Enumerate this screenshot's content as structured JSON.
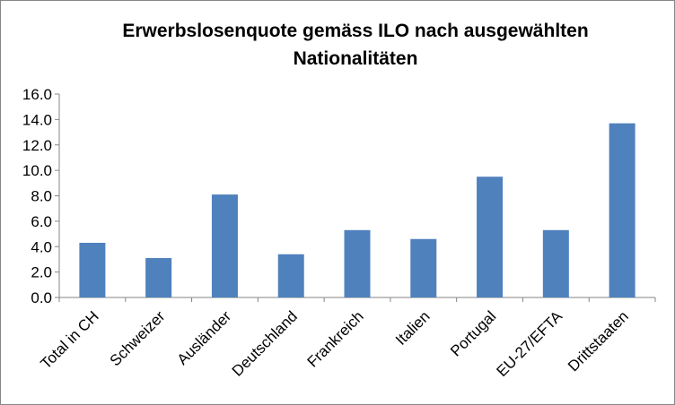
{
  "chart_data": {
    "type": "bar",
    "title_line1": "Erwerbslosenquote gemäss ILO nach ausgewählten",
    "title_line2": "Nationalitäten",
    "categories": [
      "Total in CH",
      "Schweizer",
      "Ausländer",
      "Deutschland",
      "Frankreich",
      "Italien",
      "Portugal",
      "EU-27/EFTA",
      "Drittstaaten"
    ],
    "values": [
      4.3,
      3.1,
      8.1,
      3.4,
      5.3,
      4.6,
      9.5,
      5.3,
      13.7
    ],
    "ylim": [
      0,
      16
    ],
    "yticks": [
      "0.0",
      "2.0",
      "4.0",
      "6.0",
      "8.0",
      "10.0",
      "12.0",
      "14.0",
      "16.0"
    ],
    "bar_color": "#4f81bd",
    "grid": false,
    "legend": "none"
  }
}
